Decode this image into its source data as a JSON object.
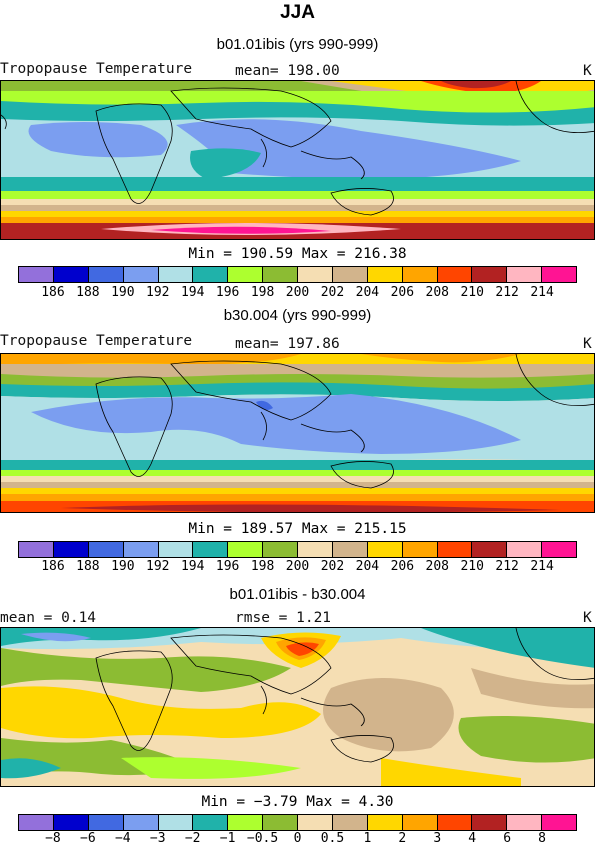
{
  "title": "JJA",
  "panels": [
    {
      "subtitle": "b01.01ibis (yrs 990-999)",
      "left_label": "Tropopause Temperature",
      "mid_label": "mean= 198.00",
      "unit": "K",
      "stats": "Min = 190.59 Max = 216.38"
    },
    {
      "subtitle": "b30.004 (yrs 990-999)",
      "left_label": "Tropopause Temperature",
      "mid_label": "mean= 197.86",
      "unit": "K",
      "stats": "Min = 189.57 Max = 215.15"
    },
    {
      "subtitle": "b01.01ibis - b30.004",
      "left_label": "mean =    0.14",
      "mid_label": "rmse =    1.21",
      "unit": "K",
      "stats": "Min =  −3.79 Max =   4.30"
    }
  ],
  "colorbar": {
    "colors": [
      "#9370db",
      "#0000cd",
      "#4169e1",
      "#7b9ef0",
      "#b0e0e6",
      "#20b2aa",
      "#adff2f",
      "#8cbc33",
      "#f5deb3",
      "#d2b48c",
      "#ffd700",
      "#ffa500",
      "#ff4500",
      "#b22222",
      "#ffb6c1",
      "#ff1493"
    ],
    "abs_ticks": [
      "186",
      "188",
      "190",
      "192",
      "194",
      "196",
      "198",
      "200",
      "202",
      "204",
      "206",
      "208",
      "210",
      "212",
      "214"
    ],
    "diff_ticks": [
      "−8",
      "−6",
      "−4",
      "−3",
      "−2",
      "−1",
      "−0.5",
      "0",
      "0.5",
      "1",
      "2",
      "3",
      "4",
      "6",
      "8"
    ]
  }
}
